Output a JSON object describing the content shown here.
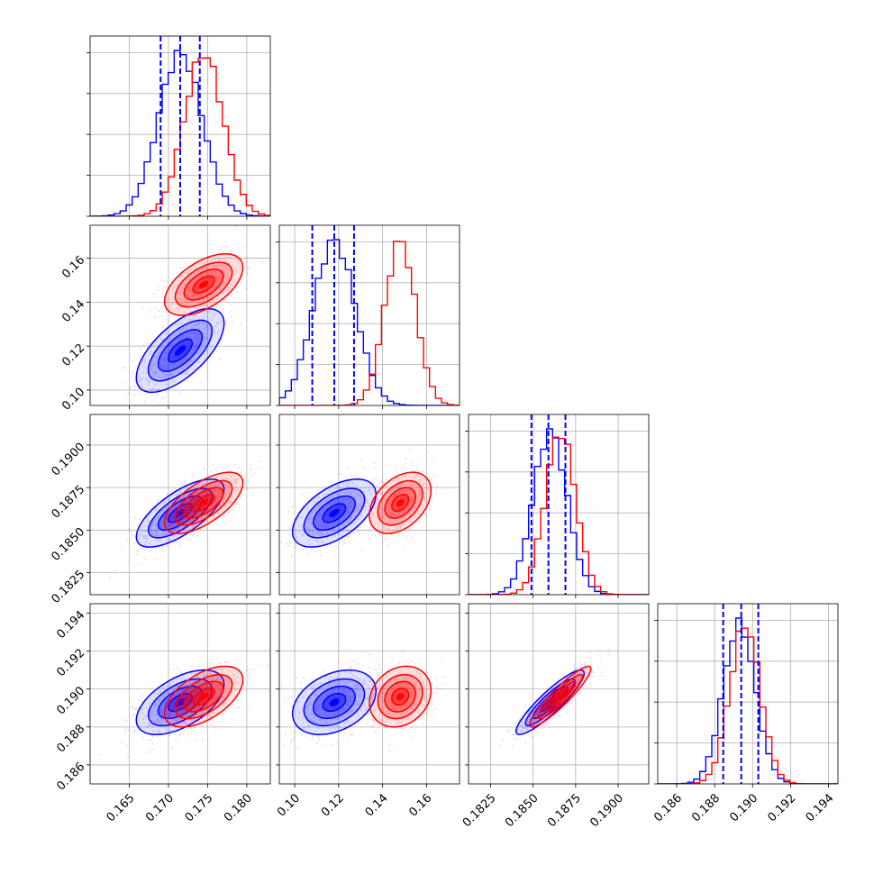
{
  "chart_data": {
    "type": "corner",
    "params": [
      {
        "range": [
          0.16,
          0.183
        ],
        "ticks": [
          0.165,
          0.17,
          0.175,
          0.18
        ],
        "tick_labels": [
          "0.165",
          "0.170",
          "0.175",
          "0.180"
        ]
      },
      {
        "range": [
          0.093,
          0.175
        ],
        "ticks": [
          0.1,
          0.12,
          0.14,
          0.16
        ],
        "tick_labels": [
          "0.10",
          "0.12",
          "0.14",
          "0.16"
        ]
      },
      {
        "range": [
          0.1812,
          0.1918
        ],
        "ticks": [
          0.1825,
          0.185,
          0.1875,
          0.19
        ],
        "tick_labels": [
          "0.1825",
          "0.1850",
          "0.1875",
          "0.1900"
        ]
      },
      {
        "range": [
          0.185,
          0.1945
        ],
        "ticks": [
          0.186,
          0.188,
          0.19,
          0.192,
          0.194
        ],
        "tick_labels": [
          "0.186",
          "0.188",
          "0.190",
          "0.192",
          "0.194"
        ]
      }
    ],
    "series": [
      {
        "color": "#0000ff",
        "mean": [
          0.1715,
          0.118,
          0.186,
          0.1893
        ],
        "std": [
          0.0028,
          0.0095,
          0.001,
          0.00085
        ],
        "corr": [
          [
            0,
            0.65,
            0.7,
            0.55
          ],
          [
            0,
            0,
            0.55,
            0.35
          ],
          [
            0,
            0,
            0,
            0.9
          ],
          [
            0,
            0,
            0,
            0
          ]
        ],
        "quantiles": [
          [
            0.169,
            0.1715,
            0.174
          ],
          [
            0.108,
            0.118,
            0.127
          ],
          [
            0.1849,
            0.1859,
            0.1869
          ],
          [
            0.18845,
            0.1894,
            0.1903
          ]
        ]
      },
      {
        "color": "#ff0000",
        "mean": [
          0.1745,
          0.148,
          0.1866,
          0.1896
        ],
        "std": [
          0.0025,
          0.007,
          0.0009,
          0.0008
        ],
        "corr": [
          [
            0,
            0.55,
            0.65,
            0.55
          ],
          [
            0,
            0,
            0.4,
            0.2
          ],
          [
            0,
            0,
            0,
            0.92
          ],
          [
            0,
            0,
            0,
            0
          ]
        ]
      }
    ]
  }
}
